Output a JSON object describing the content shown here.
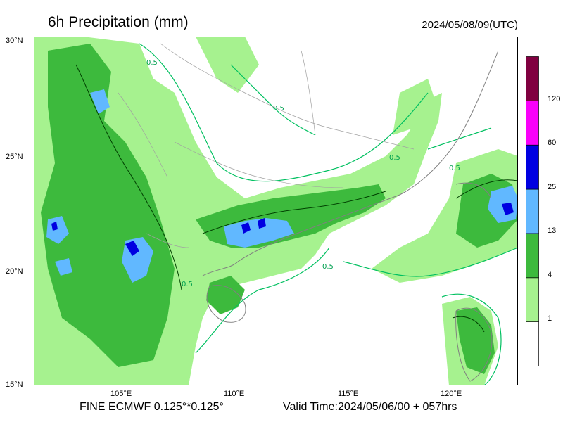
{
  "title": "6h Precipitation (mm)",
  "timestamp": "2024/05/08/09(UTC)",
  "footer": {
    "model": "FINE ECMWF 0.125°*0.125°",
    "valid_time": "Valid Time:2024/05/06/00 + 057hrs"
  },
  "axes": {
    "lat_labels": [
      "30°N",
      "25°N",
      "20°N",
      "15°N"
    ],
    "lon_labels": [
      "105°E",
      "110°E",
      "115°E",
      "120°E"
    ]
  },
  "legend": {
    "levels": [
      "1",
      "4",
      "13",
      "25",
      "60",
      "120"
    ],
    "colors": [
      "#ffffff",
      "#a6f28f",
      "#3dba3d",
      "#61b8ff",
      "#0000e1",
      "#fa00fa",
      "#800040"
    ]
  },
  "contour_label": "0.5",
  "colors": {
    "contour_green": "#00c060",
    "contour_dark": "#004000",
    "border": "#808080"
  }
}
